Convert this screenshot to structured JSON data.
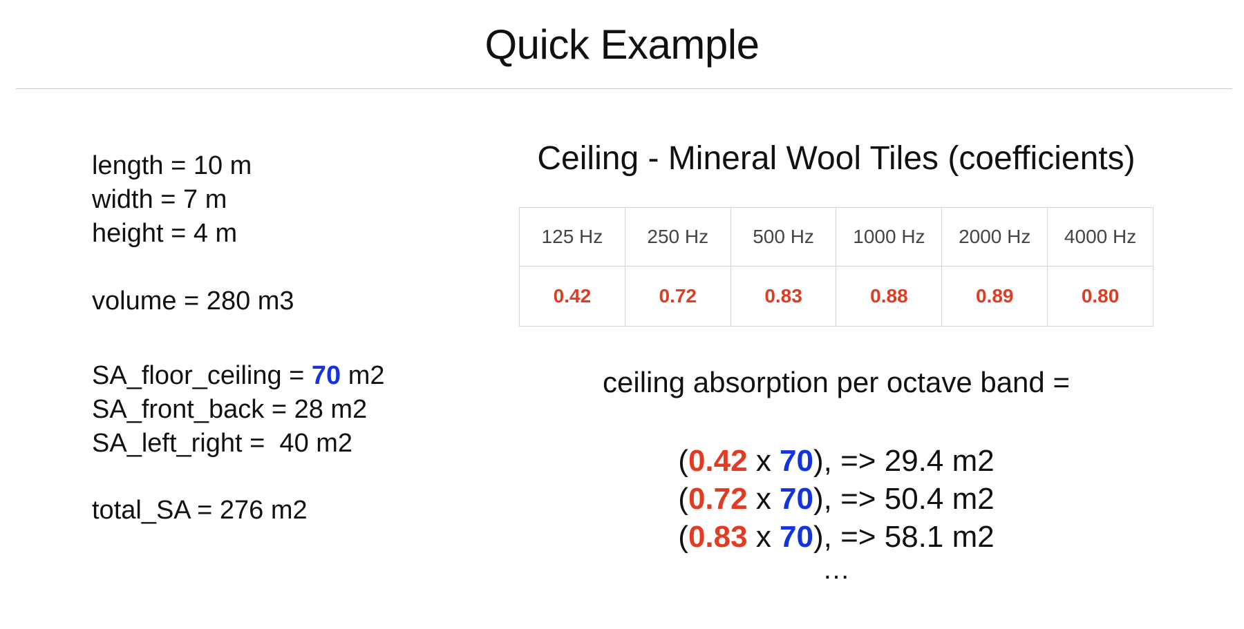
{
  "title": "Quick Example",
  "room": {
    "length": "length = 10 m",
    "width": "width = 7 m",
    "height": "height = 4 m",
    "volume": "volume = 280 m3",
    "sa_floor_ceiling_prefix": "SA_floor_ceiling = ",
    "sa_floor_ceiling_value": "70",
    "sa_floor_ceiling_unit": " m2",
    "sa_front_back": "SA_front_back = 28 m2",
    "sa_left_right": "SA_left_right =  40 m2",
    "total_sa": "total_SA = 276 m2"
  },
  "table": {
    "title": "Ceiling - Mineral Wool Tiles (coefficients)",
    "headers": [
      "125 Hz",
      "250 Hz",
      "500 Hz",
      "1000 Hz",
      "2000 Hz",
      "4000 Hz"
    ],
    "values": [
      "0.42",
      "0.72",
      "0.83",
      "0.88",
      "0.89",
      "0.80"
    ]
  },
  "absorption": {
    "heading": "ceiling absorption per octave band =",
    "rows": [
      {
        "coef": "0.42",
        "area": "70",
        "result": "29.4 m2"
      },
      {
        "coef": "0.72",
        "area": "70",
        "result": "50.4 m2"
      },
      {
        "coef": "0.83",
        "area": "70",
        "result": "58.1 m2"
      }
    ],
    "open_paren": "(",
    "times": " x ",
    "close_arrow": "), => ",
    "ellipsis": "…"
  },
  "colors": {
    "coefficient": "#e33b22",
    "area": "#1433e0"
  }
}
